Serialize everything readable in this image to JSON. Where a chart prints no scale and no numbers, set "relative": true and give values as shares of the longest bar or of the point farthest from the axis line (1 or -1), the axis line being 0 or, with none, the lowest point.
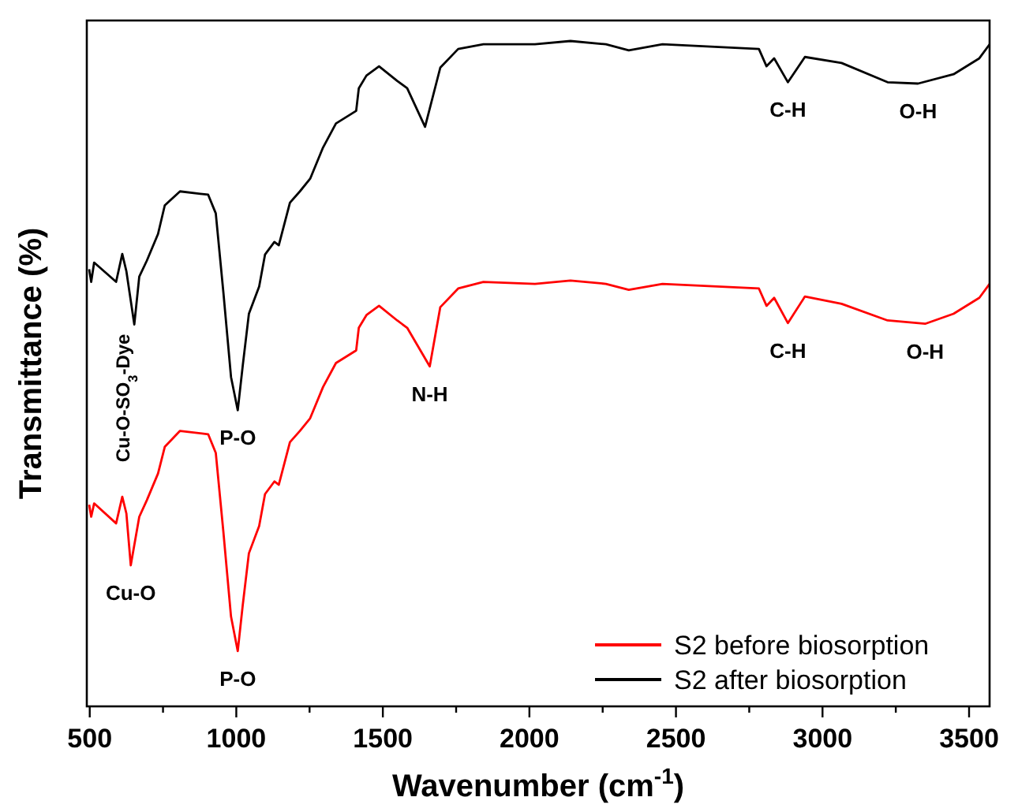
{
  "chart_data": {
    "type": "line",
    "relative": true,
    "xlabel": "Wavenumber (cm$^{-1}$)",
    "ylabel": "Transmittance (%)",
    "xlim": [
      490,
      3570
    ],
    "xticks": [
      500,
      {
        "value": 750,
        "label": null
      },
      1000,
      {
        "value": 1250,
        "label": null
      },
      1500,
      {
        "value": 1750,
        "label": null
      },
      2000,
      {
        "value": 2250,
        "label": null
      },
      2500,
      {
        "value": 2750,
        "label": null
      },
      3000,
      {
        "value": 3250,
        "label": null
      },
      3500
    ],
    "legend": "bottom right",
    "series": [
      {
        "name": "S2 before biosorption",
        "color": "#ff0000",
        "x": [
          498,
          505,
          515,
          590,
          611,
          625,
          640,
          669,
          695,
          733,
          756,
          808,
          904,
          930,
          956,
          982,
          1005,
          1022,
          1043,
          1078,
          1098,
          1130,
          1145,
          1183,
          1217,
          1252,
          1296,
          1340,
          1409,
          1418,
          1444,
          1487,
          1549,
          1583,
          1660,
          1696,
          1757,
          1843,
          2019,
          2140,
          2261,
          2339,
          2454,
          2783,
          2809,
          2835,
          2882,
          2940,
          3065,
          3222,
          3350,
          3447,
          3535,
          3570
        ],
        "values": [
          0.303,
          0.285,
          0.305,
          0.275,
          0.315,
          0.29,
          0.212,
          0.285,
          0.31,
          0.35,
          0.39,
          0.414,
          0.409,
          0.381,
          0.262,
          0.135,
          0.083,
          0.152,
          0.23,
          0.271,
          0.319,
          0.338,
          0.333,
          0.397,
          0.414,
          0.433,
          0.48,
          0.516,
          0.535,
          0.569,
          0.588,
          0.602,
          0.58,
          0.569,
          0.511,
          0.6,
          0.628,
          0.638,
          0.635,
          0.64,
          0.635,
          0.626,
          0.635,
          0.628,
          0.602,
          0.614,
          0.576,
          0.616,
          0.605,
          0.58,
          0.575,
          0.59,
          0.614,
          0.635
        ]
      },
      {
        "name": "S2 after biosorption",
        "color": "#000000",
        "x": [
          498,
          505,
          515,
          590,
          611,
          625,
          652,
          669,
          695,
          733,
          756,
          808,
          904,
          930,
          956,
          982,
          1005,
          1022,
          1043,
          1078,
          1098,
          1130,
          1145,
          1183,
          1217,
          1252,
          1296,
          1340,
          1409,
          1418,
          1444,
          1487,
          1549,
          1583,
          1644,
          1696,
          1757,
          1843,
          2019,
          2140,
          2261,
          2339,
          2454,
          2783,
          2809,
          2835,
          2882,
          2940,
          3065,
          3222,
          3326,
          3447,
          3535,
          3570
        ],
        "values": [
          0.657,
          0.638,
          0.667,
          0.638,
          0.68,
          0.654,
          0.574,
          0.646,
          0.67,
          0.71,
          0.753,
          0.774,
          0.769,
          0.741,
          0.622,
          0.495,
          0.445,
          0.512,
          0.59,
          0.631,
          0.679,
          0.698,
          0.693,
          0.757,
          0.774,
          0.793,
          0.84,
          0.876,
          0.895,
          0.929,
          0.948,
          0.962,
          0.94,
          0.929,
          0.871,
          0.96,
          0.988,
          0.995,
          0.995,
          1.0,
          0.995,
          0.986,
          0.995,
          0.988,
          0.962,
          0.974,
          0.938,
          0.976,
          0.967,
          0.938,
          0.936,
          0.95,
          0.974,
          0.995
        ]
      }
    ],
    "annotations": [
      {
        "text": "Cu-O-SO$_{3}$-Dye",
        "x": 652,
        "y": 0.574
      },
      {
        "text": "P-O",
        "x": 1005,
        "y": 0.445
      },
      {
        "text": "C-H",
        "x": 2882,
        "y": 0.938
      },
      {
        "text": "O-H",
        "x": 3326,
        "y": 0.936
      },
      {
        "text": "Cu-O",
        "x": 640,
        "y": 0.212
      },
      {
        "text": "P-O",
        "x": 1005,
        "y": 0.083
      },
      {
        "text": "N-H",
        "x": 1660,
        "y": 0.511
      },
      {
        "text": "C-H",
        "x": 2882,
        "y": 0.576
      },
      {
        "text": "O-H",
        "x": 3350,
        "y": 0.575
      }
    ]
  }
}
